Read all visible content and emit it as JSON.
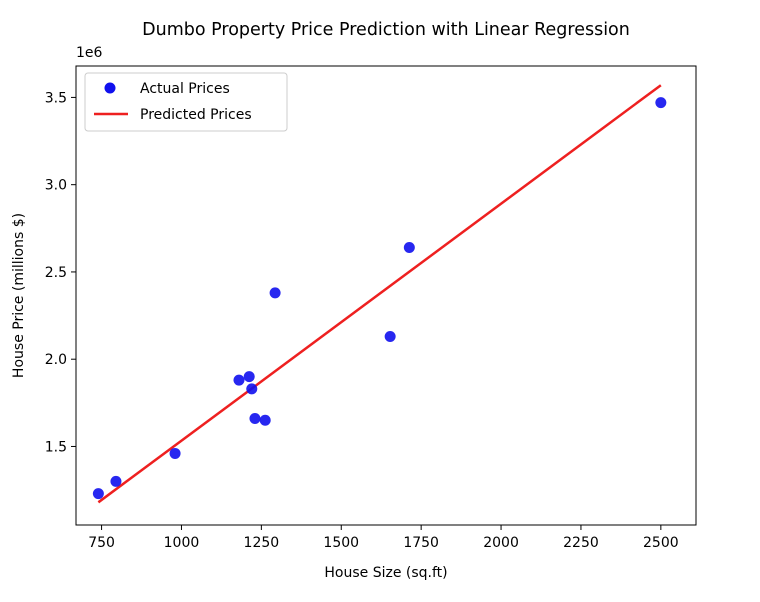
{
  "chart_data": {
    "type": "scatter",
    "title": "Dumbo Property Price Prediction with Linear Regression",
    "xlabel": "House Size (sq.ft)",
    "ylabel": "House Price (millions $)",
    "y_offset_label": "1e6",
    "xlim": [
      670,
      2610
    ],
    "ylim": [
      1050000,
      3680000
    ],
    "x_ticks": [
      750,
      1000,
      1250,
      1500,
      1750,
      2000,
      2250,
      2500
    ],
    "y_ticks": [
      1500000,
      2000000,
      2500000,
      3000000,
      3500000
    ],
    "y_tick_labels": [
      "1.5",
      "2.0",
      "2.5",
      "3.0",
      "3.5"
    ],
    "grid": false,
    "legend_position": "upper-left",
    "series": [
      {
        "name": "Actual Prices",
        "kind": "scatter",
        "color": "#1010ee",
        "points": [
          {
            "x": 740,
            "y": 1230000
          },
          {
            "x": 795,
            "y": 1300000
          },
          {
            "x": 980,
            "y": 1460000
          },
          {
            "x": 1180,
            "y": 1880000
          },
          {
            "x": 1212,
            "y": 1900000
          },
          {
            "x": 1220,
            "y": 1830000
          },
          {
            "x": 1230,
            "y": 1660000
          },
          {
            "x": 1262,
            "y": 1650000
          },
          {
            "x": 1293,
            "y": 2380000
          },
          {
            "x": 1653,
            "y": 2130000
          },
          {
            "x": 1713,
            "y": 2640000
          },
          {
            "x": 2500,
            "y": 3470000
          }
        ]
      },
      {
        "name": "Predicted Prices",
        "kind": "line",
        "color": "#ee2020",
        "points": [
          {
            "x": 740,
            "y": 1180000
          },
          {
            "x": 2500,
            "y": 3570000
          }
        ]
      }
    ]
  }
}
